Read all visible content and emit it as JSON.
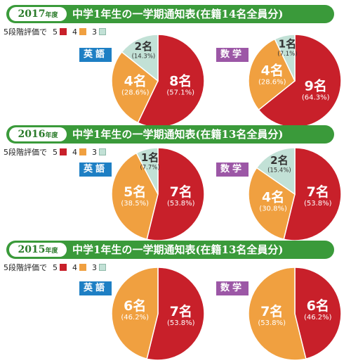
{
  "legend": {
    "text": "5段階評価で",
    "items": [
      "5",
      "4",
      "3"
    ]
  },
  "colors": {
    "grade5": "#c8202a",
    "grade4": "#f0a040",
    "grade3": "#c2e1d6",
    "header": "#3a9a3a",
    "english": "#1e7fc4",
    "math": "#9c57a6"
  },
  "sections": [
    {
      "year": "2017",
      "year_suffix": "年度",
      "title": "中学1年生の一学期通知表(在籍14名全員分)",
      "english": {
        "label": "英語",
        "count_label": "8名",
        "pct_label": "(57.1%)",
        "count_label_2": "4名",
        "pct_label_2": "(28.6%)",
        "count_label_3": "2名",
        "pct_label_3": "(14.3%)"
      },
      "math": {
        "label": "数学",
        "count_label": "9名",
        "pct_label": "(64.3%)",
        "count_label_2": "4名",
        "pct_label_2": "(28.6%)",
        "count_label_3": "1名",
        "pct_label_3": "(7.1%)"
      }
    },
    {
      "year": "2016",
      "year_suffix": "年度",
      "title": "中学1年生の一学期通知表(在籍13名全員分)",
      "english": {
        "label": "英語",
        "count_label": "7名",
        "pct_label": "(53.8%)",
        "count_label_2": "5名",
        "pct_label_2": "(38.5%)",
        "count_label_3": "1名",
        "pct_label_3": "(7.7%)"
      },
      "math": {
        "label": "数学",
        "count_label": "7名",
        "pct_label": "(53.8%)",
        "count_label_2": "4名",
        "pct_label_2": "(30.8%)",
        "count_label_3": "2名",
        "pct_label_3": "(15.4%)"
      }
    },
    {
      "year": "2015",
      "year_suffix": "年度",
      "title": "中学1年生の一学期通知表(在籍13名全員分)",
      "english": {
        "label": "英語",
        "count_label": "7名",
        "pct_label": "(53.8%)",
        "count_label_2": "6名",
        "pct_label_2": "(46.2%)"
      },
      "math": {
        "label": "数学",
        "count_label": "6名",
        "pct_label": "(46.2%)",
        "count_label_2": "7名",
        "pct_label_2": "(53.8%)"
      }
    }
  ],
  "chart_data": [
    {
      "type": "pie",
      "year": "2017",
      "subject": "英語",
      "categories": [
        "5",
        "4",
        "3"
      ],
      "values": [
        8,
        4,
        2
      ],
      "percent": [
        57.1,
        28.6,
        14.3
      ]
    },
    {
      "type": "pie",
      "year": "2017",
      "subject": "数学",
      "categories": [
        "5",
        "4",
        "3"
      ],
      "values": [
        9,
        4,
        1
      ],
      "percent": [
        64.3,
        28.6,
        7.1
      ]
    },
    {
      "type": "pie",
      "year": "2016",
      "subject": "英語",
      "categories": [
        "5",
        "4",
        "3"
      ],
      "values": [
        7,
        5,
        1
      ],
      "percent": [
        53.8,
        38.5,
        7.7
      ]
    },
    {
      "type": "pie",
      "year": "2016",
      "subject": "数学",
      "categories": [
        "5",
        "4",
        "3"
      ],
      "values": [
        7,
        4,
        2
      ],
      "percent": [
        53.8,
        30.8,
        15.4
      ]
    },
    {
      "type": "pie",
      "year": "2015",
      "subject": "英語",
      "categories": [
        "5",
        "4"
      ],
      "values": [
        7,
        6
      ],
      "percent": [
        53.8,
        46.2
      ]
    },
    {
      "type": "pie",
      "year": "2015",
      "subject": "数学",
      "categories": [
        "5",
        "4"
      ],
      "values": [
        6,
        7
      ],
      "percent": [
        46.2,
        53.8
      ]
    }
  ]
}
